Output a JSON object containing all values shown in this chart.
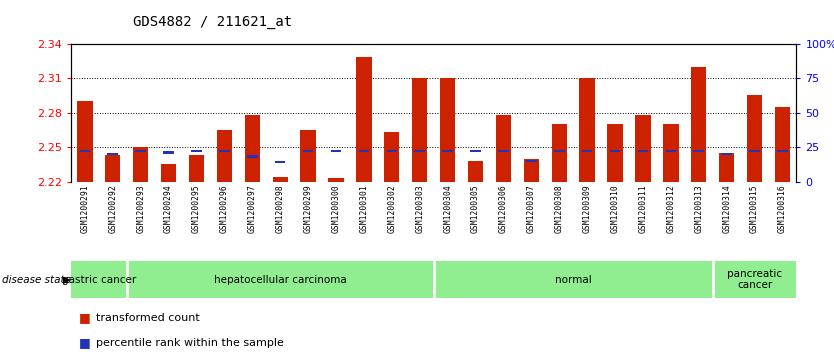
{
  "title": "GDS4882 / 211621_at",
  "samples": [
    "GSM1200291",
    "GSM1200292",
    "GSM1200293",
    "GSM1200294",
    "GSM1200295",
    "GSM1200296",
    "GSM1200297",
    "GSM1200298",
    "GSM1200299",
    "GSM1200300",
    "GSM1200301",
    "GSM1200302",
    "GSM1200303",
    "GSM1200304",
    "GSM1200305",
    "GSM1200306",
    "GSM1200307",
    "GSM1200308",
    "GSM1200309",
    "GSM1200310",
    "GSM1200311",
    "GSM1200312",
    "GSM1200313",
    "GSM1200314",
    "GSM1200315",
    "GSM1200316"
  ],
  "transformed_count": [
    2.29,
    2.243,
    2.25,
    2.235,
    2.243,
    2.265,
    2.278,
    2.224,
    2.265,
    2.223,
    2.328,
    2.263,
    2.31,
    2.31,
    2.238,
    2.278,
    2.24,
    2.27,
    2.31,
    2.27,
    2.278,
    2.27,
    2.32,
    2.245,
    2.295,
    2.285
  ],
  "percentile_rank": [
    22,
    20,
    22,
    21,
    22,
    22,
    18,
    14,
    22,
    22,
    22,
    22,
    22,
    22,
    22,
    22,
    15,
    22,
    22,
    22,
    22,
    22,
    22,
    20,
    22,
    22
  ],
  "disease_groups": [
    {
      "label": "gastric cancer",
      "start": 0,
      "end": 2
    },
    {
      "label": "hepatocellular carcinoma",
      "start": 2,
      "end": 13
    },
    {
      "label": "normal",
      "start": 13,
      "end": 23
    },
    {
      "label": "pancreatic\ncancer",
      "start": 23,
      "end": 26
    }
  ],
  "ylim_left": [
    2.22,
    2.34
  ],
  "ylim_right": [
    0,
    100
  ],
  "yticks_left": [
    2.22,
    2.25,
    2.28,
    2.31,
    2.34
  ],
  "yticks_right": [
    0,
    25,
    50,
    75,
    100
  ],
  "ytick_right_labels": [
    "0",
    "25",
    "50",
    "75",
    "100%"
  ],
  "bar_color": "#cc2200",
  "percentile_color": "#2233bb",
  "disease_state_bg": "#90ee90",
  "xtick_bg": "#d0d0d0"
}
